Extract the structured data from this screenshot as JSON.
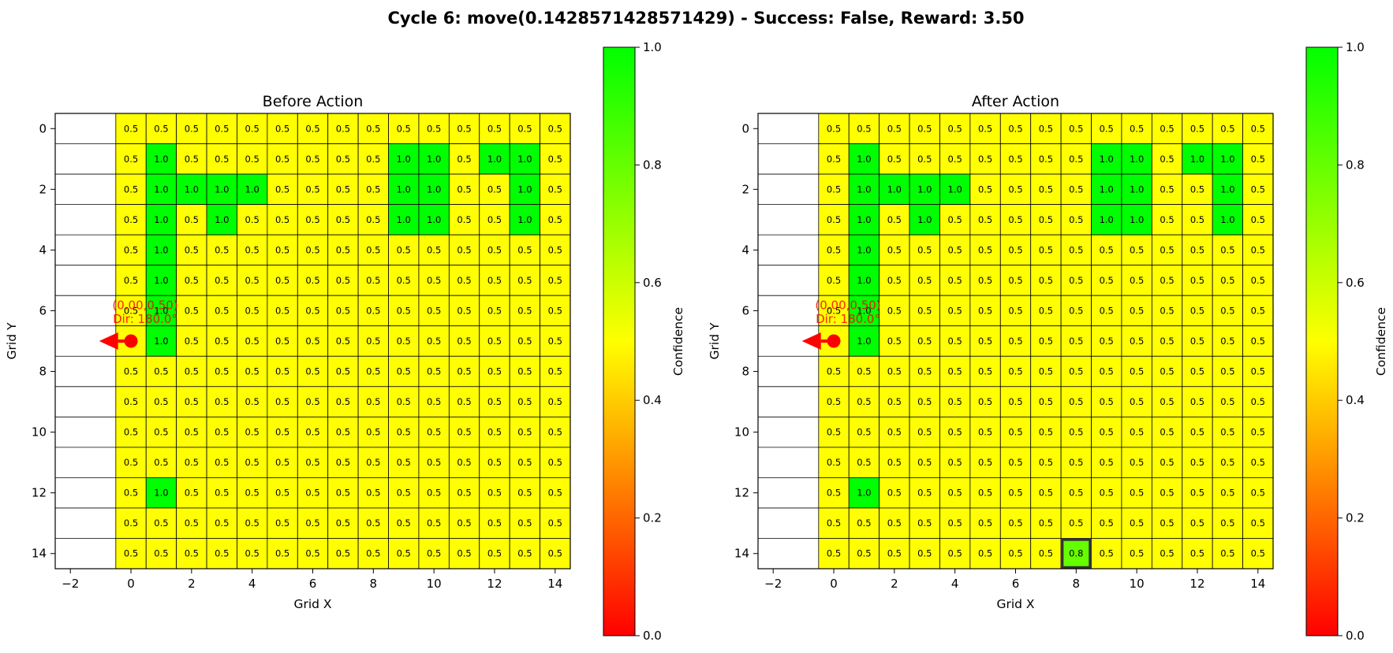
{
  "title": "Cycle 6: move(0.1428571428571429) - Success: False, Reward: 3.50",
  "chart_data": [
    {
      "type": "heatmap",
      "title": "Before Action",
      "xlabel": "Grid X",
      "ylabel": "Grid Y",
      "xlim": [
        -2.5,
        14.5
      ],
      "ylim": [
        14.5,
        -0.5
      ],
      "xticks": [
        -2,
        0,
        2,
        4,
        6,
        8,
        10,
        12,
        14
      ],
      "yticks": [
        0,
        2,
        4,
        6,
        8,
        10,
        12,
        14
      ],
      "colorbar": {
        "label": "Confidence",
        "ticks": [
          "0.0",
          "0.2",
          "0.4",
          "0.6",
          "0.8",
          "1.0"
        ],
        "range": [
          0,
          1
        ],
        "colors": [
          "#ff0000",
          "#ffff00",
          "#00ff00"
        ]
      },
      "grid": [
        [
          0.5,
          0.5,
          0.5,
          0.5,
          0.5,
          0.5,
          0.5,
          0.5,
          0.5,
          0.5,
          0.5,
          0.5,
          0.5,
          0.5,
          0.5
        ],
        [
          0.5,
          1.0,
          0.5,
          0.5,
          0.5,
          0.5,
          0.5,
          0.5,
          0.5,
          1.0,
          1.0,
          0.5,
          1.0,
          1.0,
          0.5
        ],
        [
          0.5,
          1.0,
          1.0,
          1.0,
          1.0,
          0.5,
          0.5,
          0.5,
          0.5,
          1.0,
          1.0,
          0.5,
          0.5,
          1.0,
          0.5
        ],
        [
          0.5,
          1.0,
          0.5,
          1.0,
          0.5,
          0.5,
          0.5,
          0.5,
          0.5,
          1.0,
          1.0,
          0.5,
          0.5,
          1.0,
          0.5
        ],
        [
          0.5,
          1.0,
          0.5,
          0.5,
          0.5,
          0.5,
          0.5,
          0.5,
          0.5,
          0.5,
          0.5,
          0.5,
          0.5,
          0.5,
          0.5
        ],
        [
          0.5,
          1.0,
          0.5,
          0.5,
          0.5,
          0.5,
          0.5,
          0.5,
          0.5,
          0.5,
          0.5,
          0.5,
          0.5,
          0.5,
          0.5
        ],
        [
          0.5,
          1.0,
          0.5,
          0.5,
          0.5,
          0.5,
          0.5,
          0.5,
          0.5,
          0.5,
          0.5,
          0.5,
          0.5,
          0.5,
          0.5
        ],
        [
          0.5,
          1.0,
          0.5,
          0.5,
          0.5,
          0.5,
          0.5,
          0.5,
          0.5,
          0.5,
          0.5,
          0.5,
          0.5,
          0.5,
          0.5
        ],
        [
          0.5,
          0.5,
          0.5,
          0.5,
          0.5,
          0.5,
          0.5,
          0.5,
          0.5,
          0.5,
          0.5,
          0.5,
          0.5,
          0.5,
          0.5
        ],
        [
          0.5,
          0.5,
          0.5,
          0.5,
          0.5,
          0.5,
          0.5,
          0.5,
          0.5,
          0.5,
          0.5,
          0.5,
          0.5,
          0.5,
          0.5
        ],
        [
          0.5,
          0.5,
          0.5,
          0.5,
          0.5,
          0.5,
          0.5,
          0.5,
          0.5,
          0.5,
          0.5,
          0.5,
          0.5,
          0.5,
          0.5
        ],
        [
          0.5,
          0.5,
          0.5,
          0.5,
          0.5,
          0.5,
          0.5,
          0.5,
          0.5,
          0.5,
          0.5,
          0.5,
          0.5,
          0.5,
          0.5
        ],
        [
          0.5,
          1.0,
          0.5,
          0.5,
          0.5,
          0.5,
          0.5,
          0.5,
          0.5,
          0.5,
          0.5,
          0.5,
          0.5,
          0.5,
          0.5
        ],
        [
          0.5,
          0.5,
          0.5,
          0.5,
          0.5,
          0.5,
          0.5,
          0.5,
          0.5,
          0.5,
          0.5,
          0.5,
          0.5,
          0.5,
          0.5
        ],
        [
          0.5,
          0.5,
          0.5,
          0.5,
          0.5,
          0.5,
          0.5,
          0.5,
          0.5,
          0.5,
          0.5,
          0.5,
          0.5,
          0.5,
          0.5
        ]
      ],
      "highlight_cell": null,
      "agent": {
        "x": 0,
        "y": 7,
        "direction_deg": 180,
        "position_label": "(0.00,0.50)",
        "direction_label": "Dir: 180.0°",
        "color": "#ff0000"
      }
    },
    {
      "type": "heatmap",
      "title": "After Action",
      "xlabel": "Grid X",
      "ylabel": "Grid Y",
      "xlim": [
        -2.5,
        14.5
      ],
      "ylim": [
        14.5,
        -0.5
      ],
      "xticks": [
        -2,
        0,
        2,
        4,
        6,
        8,
        10,
        12,
        14
      ],
      "yticks": [
        0,
        2,
        4,
        6,
        8,
        10,
        12,
        14
      ],
      "colorbar": {
        "label": "Confidence",
        "ticks": [
          "0.0",
          "0.2",
          "0.4",
          "0.6",
          "0.8",
          "1.0"
        ],
        "range": [
          0,
          1
        ],
        "colors": [
          "#ff0000",
          "#ffff00",
          "#00ff00"
        ]
      },
      "grid": [
        [
          0.5,
          0.5,
          0.5,
          0.5,
          0.5,
          0.5,
          0.5,
          0.5,
          0.5,
          0.5,
          0.5,
          0.5,
          0.5,
          0.5,
          0.5
        ],
        [
          0.5,
          1.0,
          0.5,
          0.5,
          0.5,
          0.5,
          0.5,
          0.5,
          0.5,
          1.0,
          1.0,
          0.5,
          1.0,
          1.0,
          0.5
        ],
        [
          0.5,
          1.0,
          1.0,
          1.0,
          1.0,
          0.5,
          0.5,
          0.5,
          0.5,
          1.0,
          1.0,
          0.5,
          0.5,
          1.0,
          0.5
        ],
        [
          0.5,
          1.0,
          0.5,
          1.0,
          0.5,
          0.5,
          0.5,
          0.5,
          0.5,
          1.0,
          1.0,
          0.5,
          0.5,
          1.0,
          0.5
        ],
        [
          0.5,
          1.0,
          0.5,
          0.5,
          0.5,
          0.5,
          0.5,
          0.5,
          0.5,
          0.5,
          0.5,
          0.5,
          0.5,
          0.5,
          0.5
        ],
        [
          0.5,
          1.0,
          0.5,
          0.5,
          0.5,
          0.5,
          0.5,
          0.5,
          0.5,
          0.5,
          0.5,
          0.5,
          0.5,
          0.5,
          0.5
        ],
        [
          0.5,
          1.0,
          0.5,
          0.5,
          0.5,
          0.5,
          0.5,
          0.5,
          0.5,
          0.5,
          0.5,
          0.5,
          0.5,
          0.5,
          0.5
        ],
        [
          0.5,
          1.0,
          0.5,
          0.5,
          0.5,
          0.5,
          0.5,
          0.5,
          0.5,
          0.5,
          0.5,
          0.5,
          0.5,
          0.5,
          0.5
        ],
        [
          0.5,
          0.5,
          0.5,
          0.5,
          0.5,
          0.5,
          0.5,
          0.5,
          0.5,
          0.5,
          0.5,
          0.5,
          0.5,
          0.5,
          0.5
        ],
        [
          0.5,
          0.5,
          0.5,
          0.5,
          0.5,
          0.5,
          0.5,
          0.5,
          0.5,
          0.5,
          0.5,
          0.5,
          0.5,
          0.5,
          0.5
        ],
        [
          0.5,
          0.5,
          0.5,
          0.5,
          0.5,
          0.5,
          0.5,
          0.5,
          0.5,
          0.5,
          0.5,
          0.5,
          0.5,
          0.5,
          0.5
        ],
        [
          0.5,
          0.5,
          0.5,
          0.5,
          0.5,
          0.5,
          0.5,
          0.5,
          0.5,
          0.5,
          0.5,
          0.5,
          0.5,
          0.5,
          0.5
        ],
        [
          0.5,
          1.0,
          0.5,
          0.5,
          0.5,
          0.5,
          0.5,
          0.5,
          0.5,
          0.5,
          0.5,
          0.5,
          0.5,
          0.5,
          0.5
        ],
        [
          0.5,
          0.5,
          0.5,
          0.5,
          0.5,
          0.5,
          0.5,
          0.5,
          0.5,
          0.5,
          0.5,
          0.5,
          0.5,
          0.5,
          0.5
        ],
        [
          0.5,
          0.5,
          0.5,
          0.5,
          0.5,
          0.5,
          0.5,
          0.5,
          0.8,
          0.5,
          0.5,
          0.5,
          0.5,
          0.5,
          0.5
        ]
      ],
      "highlight_cell": {
        "x": 8,
        "y": 14
      },
      "agent": {
        "x": 0,
        "y": 7,
        "direction_deg": 180,
        "position_label": "(0.00,0.50)",
        "direction_label": "Dir: 180.0°",
        "color": "#ff0000"
      }
    }
  ]
}
